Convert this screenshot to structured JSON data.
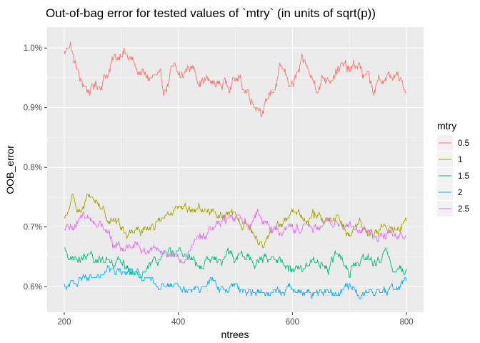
{
  "chart_data": {
    "type": "line",
    "title": "Out-of-bag error for tested values of `mtry` (in units of sqrt(p))",
    "xlabel": "ntrees",
    "ylabel": "OOB_error",
    "xlim": [
      170,
      830
    ],
    "ylim": [
      0.00557,
      0.01035
    ],
    "x_ticks": [
      200,
      400,
      600,
      800
    ],
    "x_tick_labels": [
      "200",
      "400",
      "600",
      "800"
    ],
    "y_ticks": [
      0.006,
      0.007,
      0.008,
      0.009,
      0.01
    ],
    "y_tick_labels": [
      "0.6%",
      "0.7%",
      "0.8%",
      "0.9%",
      "1.0%"
    ],
    "grid": true,
    "legend": {
      "title": "mtry",
      "position": "right"
    },
    "x_start": 200,
    "x_end": 800,
    "series": [
      {
        "name": "0.5",
        "color": "#F8766D",
        "anchors": [
          [
            200,
            0.0099
          ],
          [
            210,
            0.0101
          ],
          [
            220,
            0.0097
          ],
          [
            230,
            0.0094
          ],
          [
            245,
            0.0093
          ],
          [
            262,
            0.0094
          ],
          [
            275,
            0.0096
          ],
          [
            290,
            0.0098
          ],
          [
            302,
            0.01
          ],
          [
            315,
            0.0098
          ],
          [
            330,
            0.0096
          ],
          [
            345,
            0.0095
          ],
          [
            360,
            0.0095
          ],
          [
            375,
            0.0093
          ],
          [
            390,
            0.0096
          ],
          [
            405,
            0.0095
          ],
          [
            420,
            0.0097
          ],
          [
            440,
            0.0095
          ],
          [
            460,
            0.0094
          ],
          [
            480,
            0.0094
          ],
          [
            500,
            0.0095
          ],
          [
            520,
            0.0093
          ],
          [
            535,
            0.0091
          ],
          [
            550,
            0.009
          ],
          [
            565,
            0.0093
          ],
          [
            580,
            0.0096
          ],
          [
            600,
            0.0094
          ],
          [
            620,
            0.0097
          ],
          [
            640,
            0.0094
          ],
          [
            660,
            0.0095
          ],
          [
            680,
            0.0097
          ],
          [
            700,
            0.0096
          ],
          [
            715,
            0.0097
          ],
          [
            730,
            0.0095
          ],
          [
            745,
            0.0093
          ],
          [
            760,
            0.0095
          ],
          [
            780,
            0.0095
          ],
          [
            800,
            0.0093
          ]
        ],
        "noise": 0.00013
      },
      {
        "name": "1",
        "color": "#A3A500",
        "anchors": [
          [
            200,
            0.0071
          ],
          [
            215,
            0.0074
          ],
          [
            230,
            0.0073
          ],
          [
            245,
            0.0075
          ],
          [
            260,
            0.0074
          ],
          [
            275,
            0.0072
          ],
          [
            290,
            0.0071
          ],
          [
            310,
            0.0069
          ],
          [
            330,
            0.007
          ],
          [
            350,
            0.007
          ],
          [
            370,
            0.0071
          ],
          [
            390,
            0.0072
          ],
          [
            410,
            0.0073
          ],
          [
            430,
            0.0073
          ],
          [
            450,
            0.0073
          ],
          [
            470,
            0.0072
          ],
          [
            490,
            0.0072
          ],
          [
            510,
            0.0071
          ],
          [
            530,
            0.0069
          ],
          [
            545,
            0.0067
          ],
          [
            560,
            0.0069
          ],
          [
            580,
            0.007
          ],
          [
            600,
            0.0073
          ],
          [
            620,
            0.0072
          ],
          [
            640,
            0.0072
          ],
          [
            660,
            0.0071
          ],
          [
            680,
            0.0071
          ],
          [
            700,
            0.0069
          ],
          [
            720,
            0.007
          ],
          [
            740,
            0.0069
          ],
          [
            760,
            0.007
          ],
          [
            780,
            0.007
          ],
          [
            800,
            0.0071
          ]
        ],
        "noise": 0.0001
      },
      {
        "name": "1.5",
        "color": "#00BF7D",
        "anchors": [
          [
            200,
            0.0066
          ],
          [
            220,
            0.0064
          ],
          [
            240,
            0.0065
          ],
          [
            260,
            0.0064
          ],
          [
            280,
            0.0065
          ],
          [
            300,
            0.0064
          ],
          [
            320,
            0.0062
          ],
          [
            340,
            0.0063
          ],
          [
            360,
            0.0064
          ],
          [
            380,
            0.0066
          ],
          [
            400,
            0.0066
          ],
          [
            420,
            0.0065
          ],
          [
            440,
            0.0063
          ],
          [
            460,
            0.0064
          ],
          [
            480,
            0.0065
          ],
          [
            500,
            0.0065
          ],
          [
            520,
            0.0065
          ],
          [
            540,
            0.0064
          ],
          [
            560,
            0.0065
          ],
          [
            580,
            0.0064
          ],
          [
            600,
            0.0063
          ],
          [
            620,
            0.0063
          ],
          [
            640,
            0.0065
          ],
          [
            660,
            0.0063
          ],
          [
            680,
            0.0065
          ],
          [
            700,
            0.0063
          ],
          [
            720,
            0.0064
          ],
          [
            740,
            0.0064
          ],
          [
            760,
            0.0065
          ],
          [
            780,
            0.0063
          ],
          [
            800,
            0.0063
          ]
        ],
        "noise": 0.0001
      },
      {
        "name": "2",
        "color": "#00B0F6",
        "anchors": [
          [
            200,
            0.006
          ],
          [
            220,
            0.0061
          ],
          [
            240,
            0.0062
          ],
          [
            260,
            0.0062
          ],
          [
            280,
            0.0063
          ],
          [
            300,
            0.0062
          ],
          [
            320,
            0.0063
          ],
          [
            340,
            0.0062
          ],
          [
            360,
            0.0061
          ],
          [
            380,
            0.006
          ],
          [
            400,
            0.0061
          ],
          [
            420,
            0.006
          ],
          [
            440,
            0.006
          ],
          [
            460,
            0.0061
          ],
          [
            480,
            0.0059
          ],
          [
            500,
            0.006
          ],
          [
            520,
            0.0059
          ],
          [
            540,
            0.0059
          ],
          [
            560,
            0.0059
          ],
          [
            580,
            0.0059
          ],
          [
            600,
            0.006
          ],
          [
            620,
            0.0059
          ],
          [
            640,
            0.0059
          ],
          [
            660,
            0.0059
          ],
          [
            680,
            0.0059
          ],
          [
            700,
            0.006
          ],
          [
            720,
            0.0059
          ],
          [
            740,
            0.0059
          ],
          [
            760,
            0.0059
          ],
          [
            780,
            0.006
          ],
          [
            800,
            0.0061
          ]
        ],
        "noise": 8e-05
      },
      {
        "name": "2.5",
        "color": "#E76BF3",
        "anchors": [
          [
            200,
            0.0069
          ],
          [
            215,
            0.007
          ],
          [
            230,
            0.0072
          ],
          [
            245,
            0.0071
          ],
          [
            260,
            0.0071
          ],
          [
            275,
            0.0069
          ],
          [
            290,
            0.0067
          ],
          [
            305,
            0.0066
          ],
          [
            320,
            0.0067
          ],
          [
            340,
            0.0066
          ],
          [
            360,
            0.0067
          ],
          [
            380,
            0.0066
          ],
          [
            395,
            0.0065
          ],
          [
            405,
            0.0064
          ],
          [
            420,
            0.0066
          ],
          [
            440,
            0.0068
          ],
          [
            460,
            0.007
          ],
          [
            480,
            0.0071
          ],
          [
            500,
            0.0071
          ],
          [
            520,
            0.0071
          ],
          [
            540,
            0.0072
          ],
          [
            560,
            0.007
          ],
          [
            580,
            0.0069
          ],
          [
            600,
            0.0069
          ],
          [
            620,
            0.007
          ],
          [
            640,
            0.007
          ],
          [
            660,
            0.0071
          ],
          [
            680,
            0.0071
          ],
          [
            700,
            0.0071
          ],
          [
            720,
            0.0069
          ],
          [
            740,
            0.0069
          ],
          [
            760,
            0.0069
          ],
          [
            780,
            0.0069
          ],
          [
            800,
            0.0068
          ]
        ],
        "noise": 0.0001
      }
    ]
  }
}
